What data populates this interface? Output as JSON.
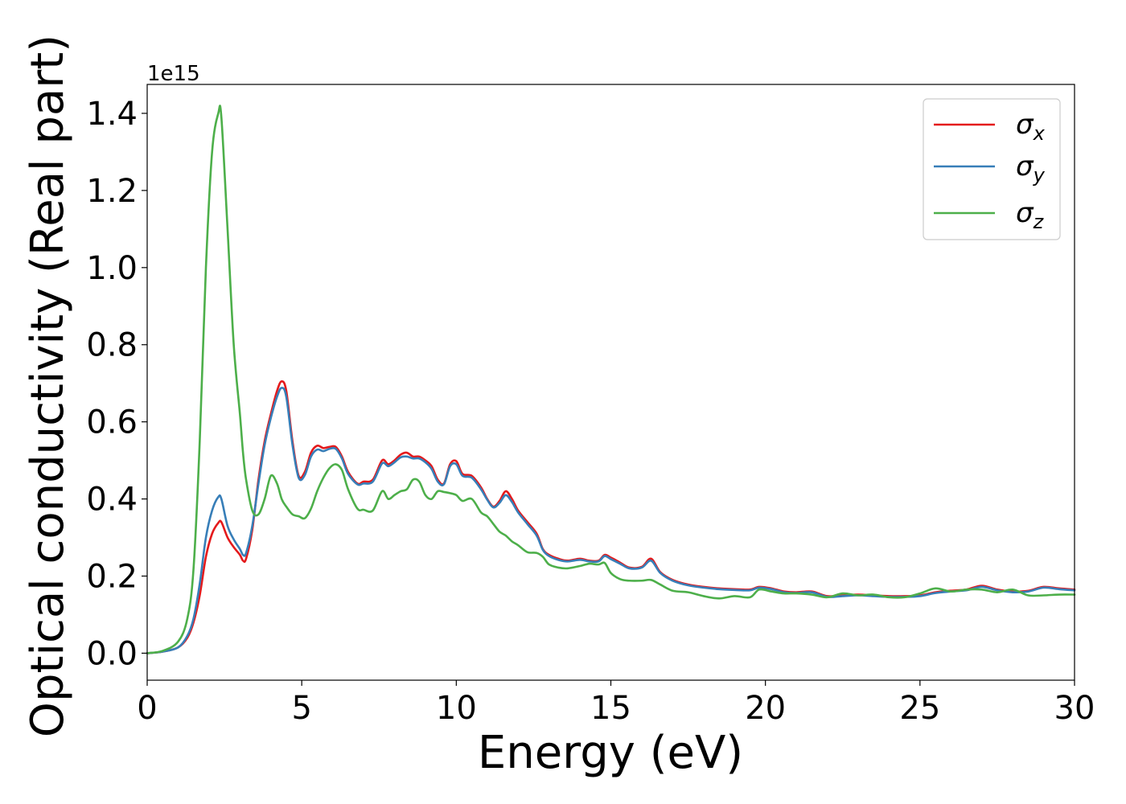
{
  "chart_data": {
    "type": "line",
    "xlabel": "Energy (eV)",
    "ylabel": "Optical conductivity (Real part)",
    "y_offset_label": "1e15",
    "xlim": [
      0,
      30
    ],
    "ylim": [
      -0.07,
      1.475
    ],
    "x_ticks": [
      0,
      5,
      10,
      15,
      20,
      25,
      30
    ],
    "x_tick_labels": [
      "0",
      "5",
      "10",
      "15",
      "20",
      "25",
      "30"
    ],
    "y_ticks": [
      0.0,
      0.2,
      0.4,
      0.6,
      0.8,
      1.0,
      1.2,
      1.4
    ],
    "y_tick_labels": [
      "0.0",
      "0.2",
      "0.4",
      "0.6",
      "0.8",
      "1.0",
      "1.2",
      "1.4"
    ],
    "grid": false,
    "legend_position": "top-right",
    "series": [
      {
        "name": "σx",
        "legend_main": "σ",
        "legend_sub": "x",
        "color": "#e41a1c",
        "x": [
          0,
          0.5,
          1.0,
          1.3,
          1.5,
          1.7,
          1.9,
          2.1,
          2.3,
          2.4,
          2.6,
          2.8,
          3.0,
          3.1,
          3.2,
          3.4,
          3.6,
          3.8,
          4.0,
          4.2,
          4.35,
          4.5,
          4.7,
          4.9,
          5.1,
          5.3,
          5.5,
          5.7,
          5.9,
          6.1,
          6.3,
          6.5,
          6.8,
          7.0,
          7.3,
          7.6,
          7.8,
          8.0,
          8.2,
          8.4,
          8.6,
          8.8,
          9.0,
          9.2,
          9.4,
          9.6,
          9.8,
          10.0,
          10.2,
          10.5,
          10.8,
          11.0,
          11.2,
          11.4,
          11.6,
          11.8,
          12.0,
          12.3,
          12.6,
          12.8,
          13.0,
          13.3,
          13.6,
          14.0,
          14.3,
          14.6,
          14.8,
          15.0,
          15.3,
          15.6,
          16.0,
          16.3,
          16.6,
          17.0,
          17.5,
          18.0,
          18.5,
          19.0,
          19.5,
          19.8,
          20.2,
          20.6,
          21.0,
          21.5,
          22.0,
          22.5,
          23.0,
          23.5,
          24.0,
          24.5,
          25.0,
          25.5,
          26.0,
          26.5,
          27.0,
          27.5,
          28.0,
          28.5,
          29.0,
          29.5,
          30.0
        ],
        "values": [
          0.0,
          0.004,
          0.015,
          0.04,
          0.08,
          0.15,
          0.25,
          0.31,
          0.338,
          0.34,
          0.3,
          0.275,
          0.255,
          0.24,
          0.245,
          0.32,
          0.45,
          0.55,
          0.62,
          0.68,
          0.705,
          0.68,
          0.55,
          0.46,
          0.47,
          0.52,
          0.538,
          0.532,
          0.535,
          0.535,
          0.51,
          0.47,
          0.44,
          0.445,
          0.45,
          0.5,
          0.49,
          0.5,
          0.515,
          0.52,
          0.51,
          0.51,
          0.5,
          0.485,
          0.45,
          0.44,
          0.49,
          0.498,
          0.465,
          0.46,
          0.43,
          0.4,
          0.38,
          0.395,
          0.42,
          0.4,
          0.37,
          0.34,
          0.31,
          0.27,
          0.255,
          0.245,
          0.24,
          0.245,
          0.24,
          0.24,
          0.255,
          0.248,
          0.235,
          0.222,
          0.224,
          0.245,
          0.21,
          0.19,
          0.178,
          0.172,
          0.168,
          0.166,
          0.165,
          0.172,
          0.168,
          0.16,
          0.158,
          0.16,
          0.148,
          0.15,
          0.152,
          0.15,
          0.148,
          0.148,
          0.15,
          0.158,
          0.162,
          0.165,
          0.175,
          0.165,
          0.16,
          0.162,
          0.172,
          0.168,
          0.165
        ]
      },
      {
        "name": "σy",
        "legend_main": "σ",
        "legend_sub": "y",
        "color": "#377eb8",
        "x": [
          0,
          0.5,
          1.0,
          1.3,
          1.5,
          1.7,
          1.9,
          2.1,
          2.3,
          2.4,
          2.6,
          2.8,
          3.0,
          3.1,
          3.2,
          3.4,
          3.6,
          3.8,
          4.0,
          4.2,
          4.35,
          4.5,
          4.7,
          4.9,
          5.1,
          5.3,
          5.5,
          5.7,
          5.9,
          6.1,
          6.3,
          6.5,
          6.8,
          7.0,
          7.3,
          7.6,
          7.8,
          8.0,
          8.2,
          8.4,
          8.6,
          8.8,
          9.0,
          9.2,
          9.4,
          9.6,
          9.8,
          10.0,
          10.2,
          10.5,
          10.8,
          11.0,
          11.2,
          11.4,
          11.6,
          11.8,
          12.0,
          12.3,
          12.6,
          12.8,
          13.0,
          13.3,
          13.6,
          14.0,
          14.3,
          14.6,
          14.8,
          15.0,
          15.3,
          15.6,
          16.0,
          16.3,
          16.6,
          17.0,
          17.5,
          18.0,
          18.5,
          19.0,
          19.5,
          19.8,
          20.2,
          20.6,
          21.0,
          21.5,
          22.0,
          22.5,
          23.0,
          23.5,
          24.0,
          24.5,
          25.0,
          25.5,
          26.0,
          26.5,
          27.0,
          27.5,
          28.0,
          28.5,
          29.0,
          29.5,
          30.0
        ],
        "values": [
          0.0,
          0.004,
          0.015,
          0.045,
          0.09,
          0.18,
          0.3,
          0.37,
          0.405,
          0.4,
          0.33,
          0.295,
          0.27,
          0.255,
          0.26,
          0.33,
          0.44,
          0.54,
          0.61,
          0.665,
          0.688,
          0.665,
          0.54,
          0.455,
          0.462,
          0.51,
          0.528,
          0.524,
          0.53,
          0.53,
          0.505,
          0.465,
          0.438,
          0.44,
          0.445,
          0.492,
          0.485,
          0.495,
          0.508,
          0.51,
          0.505,
          0.505,
          0.495,
          0.478,
          0.445,
          0.438,
          0.485,
          0.49,
          0.46,
          0.455,
          0.425,
          0.398,
          0.378,
          0.39,
          0.41,
          0.392,
          0.365,
          0.335,
          0.305,
          0.268,
          0.252,
          0.242,
          0.238,
          0.242,
          0.238,
          0.238,
          0.252,
          0.244,
          0.232,
          0.22,
          0.222,
          0.24,
          0.208,
          0.188,
          0.176,
          0.17,
          0.166,
          0.164,
          0.163,
          0.17,
          0.166,
          0.158,
          0.156,
          0.158,
          0.146,
          0.148,
          0.15,
          0.148,
          0.146,
          0.146,
          0.148,
          0.156,
          0.16,
          0.163,
          0.172,
          0.163,
          0.158,
          0.16,
          0.17,
          0.166,
          0.163
        ]
      },
      {
        "name": "σz",
        "legend_main": "σ",
        "legend_sub": "z",
        "color": "#4daf4a",
        "x": [
          0,
          0.5,
          1.0,
          1.3,
          1.5,
          1.7,
          1.9,
          2.1,
          2.3,
          2.4,
          2.6,
          2.8,
          3.0,
          3.1,
          3.2,
          3.4,
          3.6,
          3.8,
          4.0,
          4.2,
          4.35,
          4.5,
          4.7,
          4.9,
          5.1,
          5.3,
          5.5,
          5.7,
          5.9,
          6.1,
          6.3,
          6.5,
          6.8,
          7.0,
          7.3,
          7.6,
          7.8,
          8.0,
          8.2,
          8.4,
          8.6,
          8.8,
          9.0,
          9.2,
          9.4,
          9.6,
          9.8,
          10.0,
          10.2,
          10.5,
          10.8,
          11.0,
          11.2,
          11.4,
          11.6,
          11.8,
          12.0,
          12.3,
          12.6,
          12.8,
          13.0,
          13.3,
          13.6,
          14.0,
          14.3,
          14.6,
          14.8,
          15.0,
          15.3,
          15.6,
          16.0,
          16.3,
          16.6,
          17.0,
          17.5,
          18.0,
          18.5,
          19.0,
          19.5,
          19.8,
          20.2,
          20.6,
          21.0,
          21.5,
          22.0,
          22.5,
          23.0,
          23.5,
          24.0,
          24.5,
          25.0,
          25.5,
          26.0,
          26.5,
          27.0,
          27.5,
          28.0,
          28.5,
          29.0,
          29.5,
          30.0
        ],
        "values": [
          0.0,
          0.006,
          0.03,
          0.09,
          0.22,
          0.55,
          1.0,
          1.3,
          1.4,
          1.39,
          1.1,
          0.8,
          0.62,
          0.52,
          0.45,
          0.37,
          0.36,
          0.4,
          0.46,
          0.44,
          0.4,
          0.38,
          0.36,
          0.355,
          0.35,
          0.375,
          0.42,
          0.455,
          0.48,
          0.49,
          0.475,
          0.425,
          0.375,
          0.372,
          0.37,
          0.42,
          0.4,
          0.41,
          0.42,
          0.425,
          0.45,
          0.445,
          0.41,
          0.4,
          0.42,
          0.418,
          0.415,
          0.41,
          0.395,
          0.4,
          0.365,
          0.355,
          0.335,
          0.315,
          0.305,
          0.29,
          0.28,
          0.262,
          0.26,
          0.25,
          0.23,
          0.222,
          0.22,
          0.226,
          0.232,
          0.23,
          0.234,
          0.208,
          0.192,
          0.188,
          0.188,
          0.19,
          0.178,
          0.162,
          0.158,
          0.148,
          0.142,
          0.148,
          0.145,
          0.165,
          0.16,
          0.155,
          0.155,
          0.152,
          0.145,
          0.155,
          0.15,
          0.152,
          0.145,
          0.145,
          0.155,
          0.168,
          0.16,
          0.165,
          0.165,
          0.158,
          0.165,
          0.15,
          0.15,
          0.152,
          0.152
        ]
      }
    ]
  }
}
